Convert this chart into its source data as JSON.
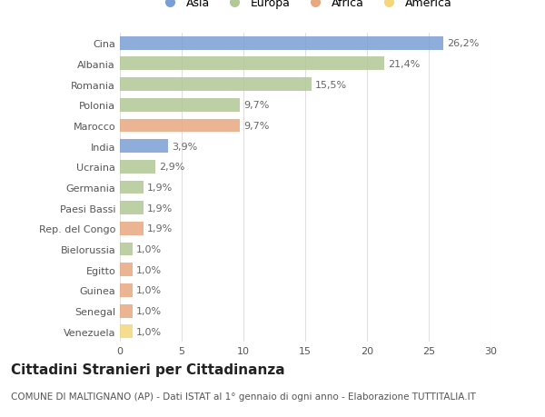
{
  "countries": [
    "Venezuela",
    "Senegal",
    "Guinea",
    "Egitto",
    "Bielorussia",
    "Rep. del Congo",
    "Paesi Bassi",
    "Germania",
    "Ucraina",
    "India",
    "Marocco",
    "Polonia",
    "Romania",
    "Albania",
    "Cina"
  ],
  "values": [
    1.0,
    1.0,
    1.0,
    1.0,
    1.0,
    1.9,
    1.9,
    1.9,
    2.9,
    3.9,
    9.7,
    9.7,
    15.5,
    21.4,
    26.2
  ],
  "labels": [
    "1,0%",
    "1,0%",
    "1,0%",
    "1,0%",
    "1,0%",
    "1,9%",
    "1,9%",
    "1,9%",
    "2,9%",
    "3,9%",
    "9,7%",
    "9,7%",
    "15,5%",
    "21,4%",
    "26,2%"
  ],
  "continents": [
    "America",
    "Africa",
    "Africa",
    "Africa",
    "Europa",
    "Africa",
    "Europa",
    "Europa",
    "Europa",
    "Asia",
    "Africa",
    "Europa",
    "Europa",
    "Europa",
    "Asia"
  ],
  "continent_colors": {
    "Asia": "#7b9fd4",
    "Europa": "#b2c895",
    "Africa": "#e8a882",
    "America": "#f5d67a"
  },
  "legend_order": [
    "Asia",
    "Europa",
    "Africa",
    "America"
  ],
  "title": "Cittadini Stranieri per Cittadinanza",
  "subtitle": "COMUNE DI MALTIGNANO (AP) - Dati ISTAT al 1° gennaio di ogni anno - Elaborazione TUTTITALIA.IT",
  "xlim": [
    0,
    30
  ],
  "xticks": [
    0,
    5,
    10,
    15,
    20,
    25,
    30
  ],
  "background_color": "#ffffff",
  "grid_color": "#e0e0e0",
  "bar_height": 0.65,
  "label_fontsize": 8,
  "tick_fontsize": 8,
  "title_fontsize": 11,
  "subtitle_fontsize": 7.5
}
